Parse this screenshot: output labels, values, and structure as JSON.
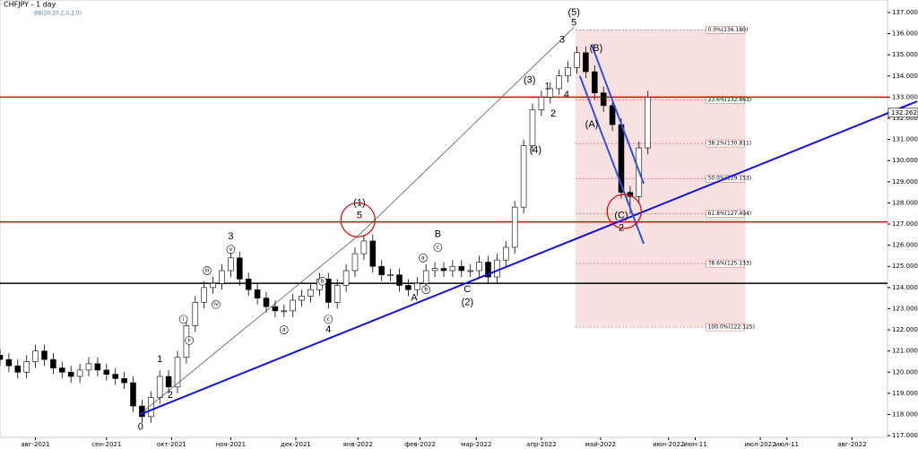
{
  "chart_data": {
    "type": "candlestick",
    "title": "CHFJPY - 1 day",
    "subtitle": "BB(20,20,2,0,2,0)",
    "x": [
      0,
      3,
      6,
      9,
      12,
      15,
      18,
      21,
      24,
      27,
      30,
      33,
      36,
      39,
      42,
      45,
      48,
      51,
      54,
      57,
      60,
      63,
      66,
      69,
      72,
      75,
      78,
      81,
      84,
      87,
      90,
      93,
      96,
      99,
      102,
      105,
      108,
      111,
      114,
      117,
      120,
      123,
      126,
      129,
      132,
      135,
      138,
      141,
      144,
      147,
      150,
      153,
      156,
      159,
      162,
      165,
      168,
      171,
      174,
      177,
      180,
      183,
      186,
      189,
      192,
      195,
      198,
      201,
      204,
      207,
      210,
      213,
      216,
      219
    ],
    "ohlc": [
      [
        120.8,
        121.1,
        120.3,
        120.6
      ],
      [
        120.6,
        120.9,
        120.0,
        120.3
      ],
      [
        120.3,
        120.6,
        119.7,
        120.0
      ],
      [
        120.0,
        120.8,
        119.7,
        120.5
      ],
      [
        120.5,
        121.3,
        120.2,
        121.0
      ],
      [
        121.0,
        121.3,
        120.3,
        120.6
      ],
      [
        120.6,
        120.9,
        119.9,
        120.2
      ],
      [
        120.2,
        120.5,
        119.7,
        120.0
      ],
      [
        120.0,
        120.3,
        119.5,
        119.8
      ],
      [
        119.8,
        120.4,
        119.5,
        120.1
      ],
      [
        120.1,
        120.7,
        119.8,
        120.4
      ],
      [
        120.4,
        120.7,
        119.8,
        120.1
      ],
      [
        120.1,
        120.4,
        119.6,
        119.9
      ],
      [
        119.9,
        120.2,
        119.4,
        119.7
      ],
      [
        119.7,
        120.0,
        119.2,
        119.5
      ],
      [
        119.5,
        119.8,
        118.1,
        118.4
      ],
      [
        118.4,
        118.7,
        117.6,
        117.9
      ],
      [
        117.9,
        119.1,
        117.6,
        118.8
      ],
      [
        118.8,
        120.1,
        118.5,
        119.8
      ],
      [
        119.8,
        120.1,
        119.0,
        119.3
      ],
      [
        119.3,
        121.0,
        119.0,
        120.7
      ],
      [
        120.7,
        122.5,
        120.4,
        122.2
      ],
      [
        122.2,
        123.6,
        121.9,
        123.3
      ],
      [
        123.3,
        124.3,
        123.0,
        124.0
      ],
      [
        124.0,
        124.5,
        123.7,
        124.2
      ],
      [
        124.2,
        125.1,
        123.9,
        124.8
      ],
      [
        124.8,
        125.7,
        124.5,
        125.4
      ],
      [
        125.4,
        125.7,
        124.1,
        124.4
      ],
      [
        124.4,
        124.7,
        123.6,
        123.9
      ],
      [
        123.9,
        124.2,
        123.2,
        123.5
      ],
      [
        123.5,
        123.8,
        122.8,
        123.1
      ],
      [
        123.1,
        123.4,
        122.6,
        122.9
      ],
      [
        122.9,
        123.2,
        122.6,
        122.9
      ],
      [
        122.9,
        123.7,
        122.6,
        123.4
      ],
      [
        123.4,
        123.9,
        123.1,
        123.6
      ],
      [
        123.6,
        124.2,
        123.3,
        123.9
      ],
      [
        123.9,
        124.7,
        123.6,
        124.4
      ],
      [
        124.4,
        124.7,
        123.0,
        123.3
      ],
      [
        123.3,
        124.4,
        123.0,
        124.1
      ],
      [
        124.1,
        125.1,
        123.8,
        124.8
      ],
      [
        124.8,
        125.9,
        124.5,
        125.6
      ],
      [
        125.6,
        126.5,
        125.3,
        126.2
      ],
      [
        126.2,
        126.5,
        124.7,
        125.0
      ],
      [
        125.0,
        125.3,
        124.3,
        124.6
      ],
      [
        124.6,
        124.9,
        124.3,
        124.6
      ],
      [
        124.6,
        124.9,
        123.8,
        124.1
      ],
      [
        124.1,
        124.4,
        123.6,
        123.9
      ],
      [
        123.9,
        124.5,
        123.6,
        124.2
      ],
      [
        124.2,
        125.1,
        123.9,
        124.8
      ],
      [
        124.8,
        125.2,
        124.5,
        124.9
      ],
      [
        124.9,
        125.2,
        124.5,
        124.8
      ],
      [
        124.8,
        125.3,
        124.5,
        125.0
      ],
      [
        125.0,
        125.3,
        124.5,
        124.8
      ],
      [
        124.8,
        125.1,
        124.5,
        124.8
      ],
      [
        124.8,
        125.5,
        124.5,
        125.2
      ],
      [
        125.2,
        125.5,
        124.2,
        124.5
      ],
      [
        124.5,
        125.6,
        124.2,
        125.3
      ],
      [
        125.3,
        126.2,
        125.0,
        125.9
      ],
      [
        125.9,
        128.1,
        125.6,
        127.8
      ],
      [
        127.8,
        131.0,
        127.5,
        130.7
      ],
      [
        130.7,
        132.7,
        130.4,
        132.4
      ],
      [
        132.4,
        133.3,
        132.1,
        133.0
      ],
      [
        133.0,
        133.7,
        132.7,
        133.4
      ],
      [
        133.4,
        134.3,
        133.1,
        134.0
      ],
      [
        134.0,
        134.7,
        133.7,
        134.4
      ],
      [
        134.4,
        135.4,
        134.1,
        135.1
      ],
      [
        135.1,
        135.4,
        133.9,
        134.2
      ],
      [
        134.2,
        134.5,
        132.9,
        133.2
      ],
      [
        133.2,
        133.5,
        132.3,
        132.6
      ],
      [
        132.6,
        132.9,
        131.4,
        131.7
      ],
      [
        131.7,
        132.0,
        128.2,
        128.5
      ],
      [
        128.5,
        128.8,
        127.5,
        128.3
      ],
      [
        128.3,
        130.9,
        128.0,
        130.6
      ],
      [
        130.6,
        133.3,
        130.3,
        133.0
      ]
    ],
    "up_color": "#ffffff",
    "down_color": "#000000",
    "xlim": [
      0,
      300
    ],
    "xticks": [
      {
        "value": 12,
        "label": "авг-2021"
      },
      {
        "value": 36,
        "label": "сен-2021"
      },
      {
        "value": 58,
        "label": "окт-2021"
      },
      {
        "value": 78,
        "label": "ноя-2021"
      },
      {
        "value": 100,
        "label": "дек-2021"
      },
      {
        "value": 121,
        "label": "янв-2022"
      },
      {
        "value": 142,
        "label": "фев-2022"
      },
      {
        "value": 161,
        "label": "мар-2022"
      },
      {
        "value": 183,
        "label": "апр-2022"
      },
      {
        "value": 203,
        "label": "май-2022"
      },
      {
        "value": 226,
        "label": "июн-2022"
      },
      {
        "value": 235,
        "label": "июн-11"
      },
      {
        "value": 257,
        "label": "июл-2022"
      },
      {
        "value": 266,
        "label": "июл-11"
      },
      {
        "value": 288,
        "label": "авг-2022"
      }
    ],
    "ylim": [
      116.92,
      137.59
    ],
    "yticks": [
      {
        "value": 117,
        "label": "117.000"
      },
      {
        "value": 118,
        "label": "118.000"
      },
      {
        "value": 119,
        "label": "119.000"
      },
      {
        "value": 120,
        "label": "120.000"
      },
      {
        "value": 121,
        "label": "121.000"
      },
      {
        "value": 122,
        "label": "122.000"
      },
      {
        "value": 123,
        "label": "123.000"
      },
      {
        "value": 124,
        "label": "124.000"
      },
      {
        "value": 125,
        "label": "125.000"
      },
      {
        "value": 126,
        "label": "126.000"
      },
      {
        "value": 127,
        "label": "127.000"
      },
      {
        "value": 128,
        "label": "128.000"
      },
      {
        "value": 129,
        "label": "129.000"
      },
      {
        "value": 130,
        "label": "130.000"
      },
      {
        "value": 131,
        "label": "131.000"
      },
      {
        "value": 132,
        "label": "132.000"
      },
      {
        "value": 133,
        "label": "133.000"
      },
      {
        "value": 134,
        "label": "134.000"
      },
      {
        "value": 135,
        "label": "135.000"
      },
      {
        "value": 136,
        "label": "136.000"
      },
      {
        "value": 137,
        "label": "137.000"
      }
    ],
    "last_price": 132.262,
    "hlines": [
      {
        "value": 133.0,
        "color": "#e00000"
      },
      {
        "value": 127.1,
        "color": "#e00000"
      },
      {
        "value": 124.2,
        "color": "#000000"
      }
    ],
    "fib_box_x": [
      194.5,
      252
    ],
    "fib_levels": [
      {
        "value": 136.18,
        "label": "0.0%(136.180)"
      },
      {
        "value": 132.863,
        "label": "23.6%(132.863)"
      },
      {
        "value": 130.811,
        "label": "38.2%(130.811)"
      },
      {
        "value": 129.153,
        "label": "50.0%(129.153)"
      },
      {
        "value": 127.494,
        "label": "61.8%(127.494)"
      },
      {
        "value": 125.133,
        "label": "78.6%(125.133)"
      },
      {
        "value": 122.125,
        "label": "100.0%(122.125)"
      }
    ],
    "trendlines": [
      {
        "color": "#1010e0",
        "points": [
          [
            47,
            117.98
          ],
          [
            310,
            132.8
          ]
        ]
      },
      {
        "color": "#3050e0",
        "points": [
          [
            200,
            135.47
          ],
          [
            217.6,
            128.9
          ]
        ]
      },
      {
        "color": "#3050e0",
        "points": [
          [
            196,
            134.0
          ],
          [
            217.6,
            126.07
          ]
        ]
      },
      {
        "color": "#444444",
        "points": [
          [
            47,
            117.98
          ],
          [
            121.5,
            126.5
          ],
          [
            194,
            136.3
          ]
        ]
      }
    ],
    "highlights": [
      {
        "x": 121,
        "y": 127.2
      },
      {
        "x": 211,
        "y": 127.6
      }
    ],
    "annotations": [
      {
        "text": "(5)",
        "x": 194,
        "y": 137.0
      },
      {
        "text": "5",
        "x": 194,
        "y": 136.5
      },
      {
        "text": "3",
        "x": 190,
        "y": 135.7
      },
      {
        "text": "(3)",
        "x": 179,
        "y": 133.8
      },
      {
        "text": "1",
        "x": 185,
        "y": 133.5
      },
      {
        "text": "2",
        "x": 187,
        "y": 132.2
      },
      {
        "text": "4",
        "x": 191.5,
        "y": 133.1
      },
      {
        "text": "(4)",
        "x": 181,
        "y": 130.5
      },
      {
        "text": "(B)",
        "x": 201.5,
        "y": 135.3
      },
      {
        "text": "(A)",
        "x": 200,
        "y": 131.7
      },
      {
        "text": "(C)",
        "x": 210,
        "y": 127.4
      },
      {
        "text": "2",
        "x": 210,
        "y": 126.8
      },
      {
        "text": "(1)",
        "x": 121.5,
        "y": 128.0
      },
      {
        "text": "5",
        "x": 121.5,
        "y": 127.4
      },
      {
        "text": "B",
        "x": 148,
        "y": 126.5
      },
      {
        "text": "C",
        "x": 158,
        "y": 123.9
      },
      {
        "text": "(2)",
        "x": 158,
        "y": 123.3
      },
      {
        "text": "4",
        "x": 111,
        "y": 122.0
      },
      {
        "text": "3",
        "x": 78,
        "y": 126.4
      },
      {
        "text": "1",
        "x": 54,
        "y": 120.6
      },
      {
        "text": "2",
        "x": 57.5,
        "y": 118.9
      },
      {
        "text": "0",
        "x": 47.5,
        "y": 117.4
      },
      {
        "text": "A",
        "x": 140,
        "y": 123.5
      }
    ],
    "minor_annotations": [
      {
        "text": "a",
        "x": 96,
        "y": 122.0
      },
      {
        "text": "b",
        "x": 109,
        "y": 124.3
      },
      {
        "text": "c",
        "x": 111,
        "y": 122.5
      },
      {
        "text": "i",
        "x": 62,
        "y": 122.5
      },
      {
        "text": "ii",
        "x": 64,
        "y": 121.5
      },
      {
        "text": "iii",
        "x": 70,
        "y": 124.8
      },
      {
        "text": "iv",
        "x": 73,
        "y": 123.2
      },
      {
        "text": "v",
        "x": 78,
        "y": 125.8
      },
      {
        "text": "a",
        "x": 143,
        "y": 125.4
      },
      {
        "text": "b",
        "x": 144,
        "y": 123.9
      },
      {
        "text": "c",
        "x": 148,
        "y": 125.9
      }
    ]
  }
}
